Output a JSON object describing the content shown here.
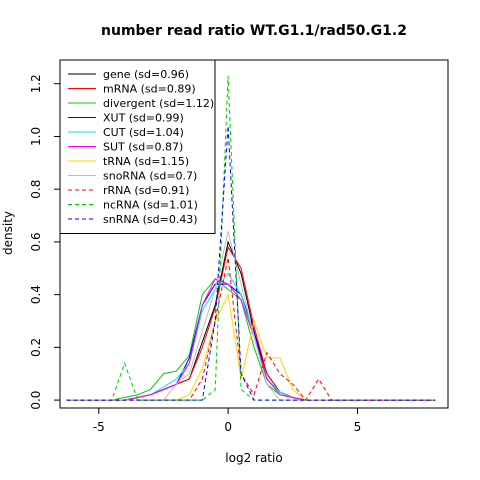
{
  "chart_data": {
    "type": "line",
    "title": "number read ratio WT.G1.1/rad50.G1.2",
    "xlabel": "log2 ratio",
    "ylabel": "density",
    "xlim": [
      -6.5,
      8.5
    ],
    "ylim": [
      -0.03,
      1.29
    ],
    "x_ticks": [
      -5,
      0,
      5
    ],
    "x_tick_labels": [
      "-5",
      "0",
      "5"
    ],
    "y_ticks": [
      0.0,
      0.2,
      0.4,
      0.6,
      0.8,
      1.0,
      1.2
    ],
    "y_tick_labels": [
      "0.0",
      "0.2",
      "0.4",
      "0.6",
      "0.8",
      "1.0",
      "1.2"
    ],
    "grid": false,
    "legend_position": "top-left",
    "series": [
      {
        "name": "gene (sd=0.96)",
        "color": "#000000",
        "dash": "solid",
        "x": [
          -6.25,
          -4.5,
          -4.0,
          -3.5,
          -3.0,
          -2.5,
          -2.0,
          -1.5,
          -1.0,
          -0.5,
          0.0,
          0.5,
          1.0,
          1.5,
          2.0,
          2.5,
          3.0,
          3.5,
          8.0
        ],
        "y": [
          0,
          0,
          0,
          0.01,
          0.02,
          0.04,
          0.06,
          0.08,
          0.22,
          0.36,
          0.6,
          0.48,
          0.26,
          0.1,
          0.03,
          0.01,
          0,
          0,
          0
        ]
      },
      {
        "name": "mRNA (sd=0.89)",
        "color": "#ff0000",
        "dash": "solid",
        "x": [
          -6.25,
          -4.5,
          -4.0,
          -3.5,
          -3.0,
          -2.5,
          -2.0,
          -1.5,
          -1.0,
          -0.5,
          0.0,
          0.5,
          1.0,
          1.5,
          2.0,
          2.5,
          3.0,
          3.5,
          8.0
        ],
        "y": [
          0,
          0,
          0,
          0.01,
          0.02,
          0.04,
          0.06,
          0.08,
          0.2,
          0.35,
          0.58,
          0.5,
          0.28,
          0.1,
          0.03,
          0.01,
          0,
          0,
          0
        ]
      },
      {
        "name": "divergent (sd=1.12)",
        "color": "#00cd00",
        "dash": "solid",
        "x": [
          -6.25,
          -4.5,
          -4.0,
          -3.5,
          -3.0,
          -2.5,
          -2.0,
          -1.5,
          -1.0,
          -0.5,
          0.0,
          0.5,
          1.0,
          1.5,
          2.0,
          2.5,
          3.0,
          8.0
        ],
        "y": [
          0,
          0,
          0.01,
          0.02,
          0.04,
          0.1,
          0.11,
          0.17,
          0.4,
          0.46,
          0.42,
          0.38,
          0.2,
          0.06,
          0.02,
          0.01,
          0,
          0
        ]
      },
      {
        "name": "XUT (sd=0.99)",
        "color": "#0000ff",
        "dash": "solid",
        "x": [
          -6.25,
          -4.5,
          -4.0,
          -3.5,
          -3.0,
          -2.5,
          -2.0,
          -1.5,
          -1.0,
          -0.5,
          0.0,
          0.5,
          1.0,
          1.5,
          2.0,
          2.5,
          3.0,
          8.0
        ],
        "y": [
          0,
          0,
          0,
          0.01,
          0.02,
          0.04,
          0.06,
          0.16,
          0.36,
          0.44,
          0.44,
          0.4,
          0.26,
          0.08,
          0.03,
          0.01,
          0,
          0
        ]
      },
      {
        "name": "CUT (sd=1.04)",
        "color": "#00e5ee",
        "dash": "solid",
        "x": [
          -6.25,
          -4.5,
          -4.0,
          -3.5,
          -3.0,
          -2.5,
          -2.0,
          -1.5,
          -1.0,
          -0.5,
          0.0,
          0.5,
          1.0,
          1.5,
          2.0,
          2.5,
          3.0,
          8.0
        ],
        "y": [
          0,
          0,
          0,
          0.01,
          0.02,
          0.05,
          0.08,
          0.14,
          0.34,
          0.42,
          0.48,
          0.4,
          0.24,
          0.08,
          0.03,
          0.01,
          0,
          0
        ]
      },
      {
        "name": "SUT (sd=0.87)",
        "color": "#ff00ff",
        "dash": "solid",
        "x": [
          -6.25,
          -4.5,
          -4.0,
          -3.5,
          -3.0,
          -2.5,
          -2.0,
          -1.5,
          -1.0,
          -0.5,
          0.0,
          0.5,
          1.0,
          1.5,
          2.0,
          2.5,
          3.0,
          8.0
        ],
        "y": [
          0,
          0,
          0,
          0.01,
          0.02,
          0.04,
          0.06,
          0.14,
          0.36,
          0.46,
          0.44,
          0.38,
          0.24,
          0.08,
          0.02,
          0.01,
          0,
          0
        ]
      },
      {
        "name": "tRNA (sd=1.15)",
        "color": "#ffd700",
        "dash": "solid",
        "x": [
          -6.25,
          -2.0,
          -1.5,
          -1.0,
          -0.5,
          0.0,
          0.5,
          1.0,
          1.5,
          2.0,
          2.5,
          3.0,
          8.0
        ],
        "y": [
          0,
          0,
          0.02,
          0.12,
          0.3,
          0.4,
          0.08,
          0.3,
          0.16,
          0.16,
          0.04,
          0,
          0
        ]
      },
      {
        "name": "snoRNA (sd=0.7)",
        "color": "#bebebe",
        "dash": "solid",
        "x": [
          -6.25,
          -2.5,
          -2.0,
          -1.5,
          -1.0,
          -0.5,
          0.0,
          0.5,
          1.0,
          1.5,
          2.0,
          8.0
        ],
        "y": [
          0,
          0,
          0.06,
          0.1,
          0.26,
          0.42,
          0.64,
          0.44,
          0.24,
          0.06,
          0,
          0
        ]
      },
      {
        "name": "rRNA (sd=0.91)",
        "color": "#ff0000",
        "dash": "dashed",
        "x": [
          -6.25,
          -1.5,
          -1.0,
          -0.5,
          0.0,
          0.5,
          1.0,
          1.5,
          2.0,
          2.5,
          3.0,
          3.5,
          4.0,
          8.0
        ],
        "y": [
          0,
          0,
          0.08,
          0.3,
          0.54,
          0.1,
          0.02,
          0.18,
          0.1,
          0.06,
          0,
          0.08,
          0,
          0
        ]
      },
      {
        "name": "ncRNA (sd=1.01)",
        "color": "#00cd00",
        "dash": "dashed",
        "x": [
          -6.25,
          -4.5,
          -4.0,
          -3.5,
          -3.0,
          -2.5,
          -1.0,
          -0.5,
          0.0,
          0.5,
          1.0,
          8.0
        ],
        "y": [
          0,
          0,
          0.14,
          0,
          0,
          0,
          0,
          0.04,
          1.23,
          0.04,
          0,
          0
        ]
      },
      {
        "name": "snRNA (sd=0.43)",
        "color": "#0000ff",
        "dash": "dashed",
        "x": [
          -6.25,
          -1.0,
          -0.5,
          0.0,
          0.5,
          1.0,
          8.0
        ],
        "y": [
          0,
          0,
          0.3,
          1.04,
          0.1,
          0,
          0
        ]
      }
    ]
  }
}
